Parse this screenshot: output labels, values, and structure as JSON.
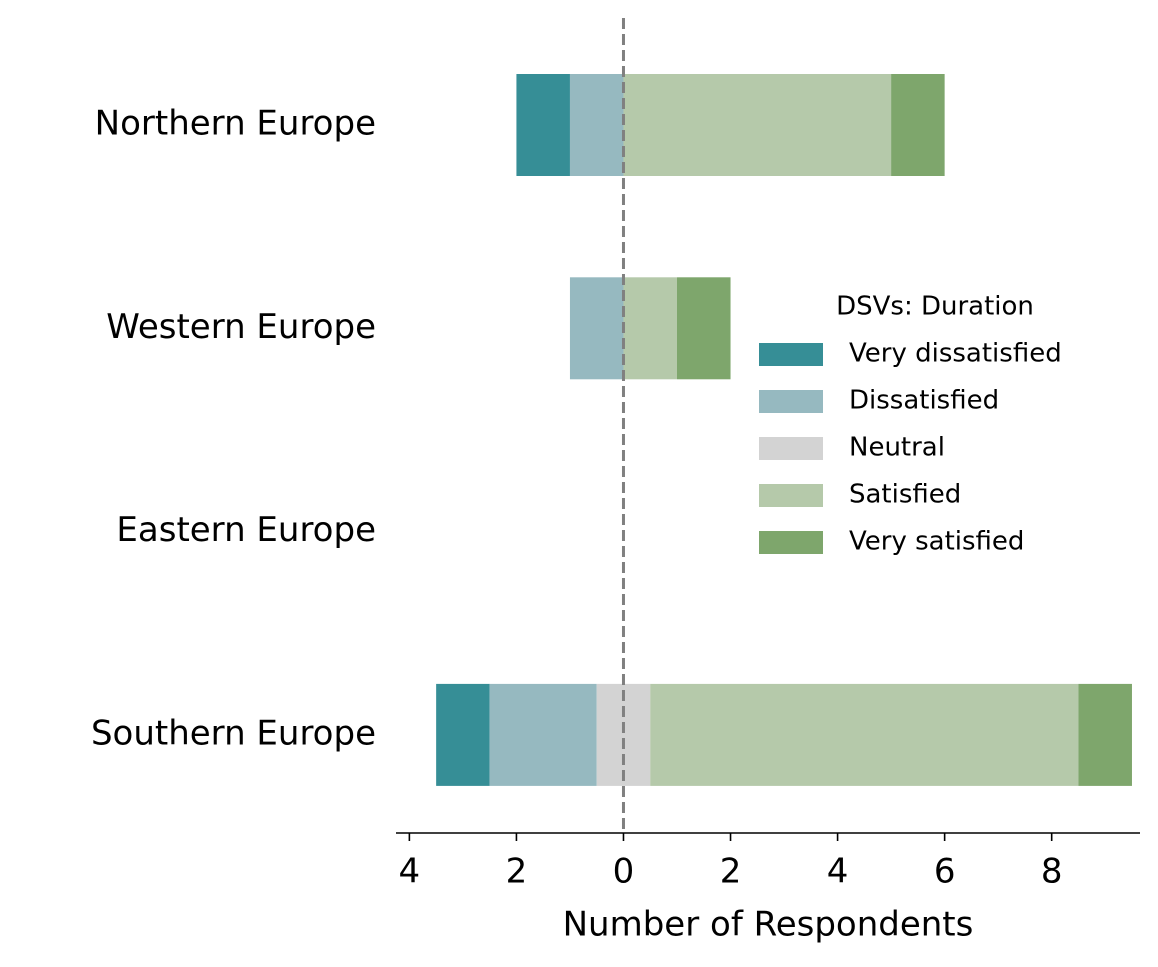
{
  "chart_data": {
    "type": "diverging-bar",
    "x_label": "Number of Respondents",
    "categories": [
      "Northern Europe",
      "Western Europe",
      "Eastern Europe",
      "Southern Europe"
    ],
    "legend_title": "DSVs: Duration",
    "series": [
      {
        "name": "Very dissatisfied",
        "color": "#368e96",
        "side": "negative",
        "values": [
          1,
          0,
          0,
          1
        ]
      },
      {
        "name": "Dissatisfied",
        "color": "#96b9c0",
        "side": "negative",
        "values": [
          1,
          1,
          0,
          2
        ]
      },
      {
        "name": "Neutral",
        "color": "#d3d3d3",
        "side": "center",
        "values": [
          0,
          0,
          0,
          1
        ]
      },
      {
        "name": "Satisfied",
        "color": "#b5c9aa",
        "side": "positive",
        "values": [
          5,
          1,
          0,
          8
        ]
      },
      {
        "name": "Very satisfied",
        "color": "#7ea66c",
        "side": "positive",
        "values": [
          1,
          1,
          0,
          1
        ]
      }
    ],
    "xlim": [
      -4.25,
      9.65
    ],
    "xticks": [
      {
        "value": -4,
        "label": "4"
      },
      {
        "value": -2,
        "label": "2"
      },
      0,
      2,
      4,
      6,
      8
    ],
    "legend": "right"
  }
}
